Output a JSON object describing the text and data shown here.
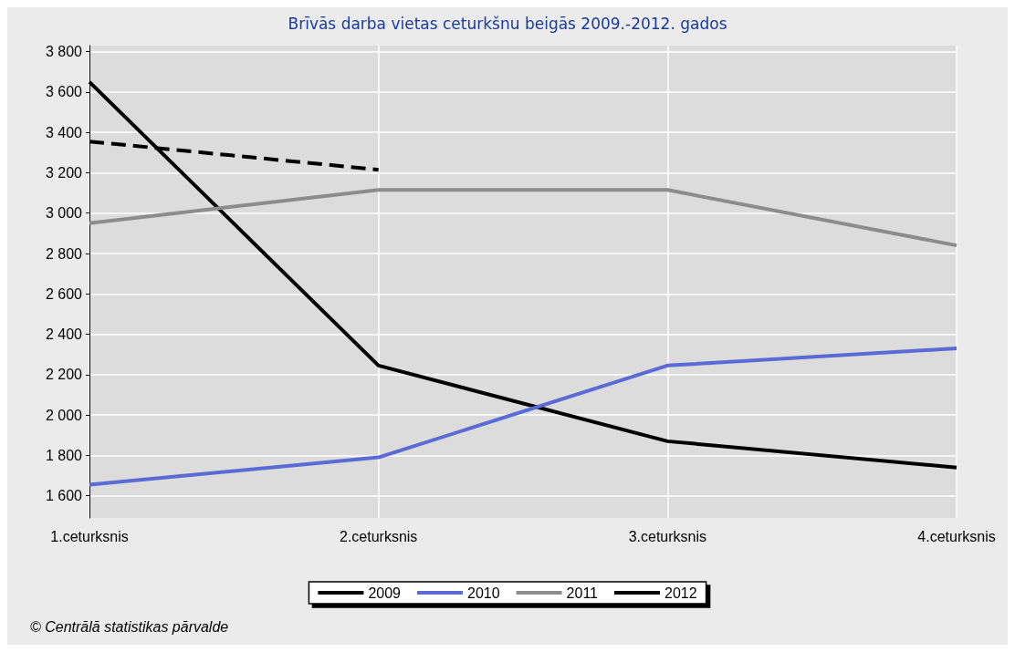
{
  "chart_data": {
    "type": "line",
    "title": "Brīvās darba vietas ceturkšnu beigās 2009.-2012. gados",
    "categories": [
      "1.ceturksnis",
      "2.ceturksnis",
      "3.ceturksnis",
      "4.ceturksnis"
    ],
    "series": [
      {
        "name": "2009",
        "color": "#000000",
        "values": [
          3650,
          2245,
          1870,
          1740
        ]
      },
      {
        "name": "2010",
        "color": "#5b6bd6",
        "values": [
          1655,
          1790,
          2245,
          2330
        ]
      },
      {
        "name": "2011",
        "color": "#8c8c8c",
        "values": [
          2950,
          3115,
          3115,
          2840
        ]
      },
      {
        "name": "2012",
        "color": "#000000",
        "line_style": "dashed",
        "values": [
          3355,
          3215,
          null,
          null
        ]
      }
    ],
    "ylim": [
      1490,
      3830
    ],
    "yticks": [
      1600,
      1800,
      2000,
      2200,
      2400,
      2600,
      2800,
      3000,
      3200,
      3400,
      3600,
      3800
    ],
    "grid": true,
    "legend": "bottom",
    "marker": "none",
    "line_style": "solid",
    "annotations": [
      "© Centrālā statistikas pārvalde"
    ]
  }
}
